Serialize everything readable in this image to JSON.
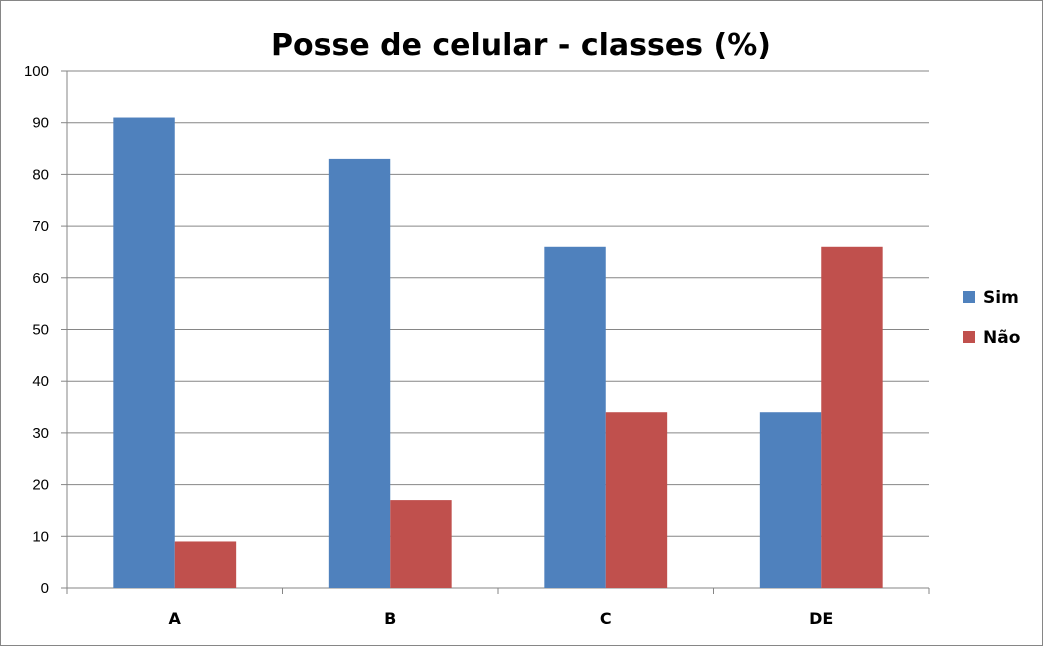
{
  "chart_data": {
    "type": "bar",
    "title": "Posse de celular - classes (%)",
    "xlabel": "",
    "ylabel": "",
    "categories": [
      "A",
      "B",
      "C",
      "DE"
    ],
    "series": [
      {
        "name": "Sim",
        "values": [
          91,
          83,
          66,
          34
        ],
        "color": "#4F81BD"
      },
      {
        "name": "Não",
        "values": [
          9,
          17,
          34,
          66
        ],
        "color": "#C0504D"
      }
    ],
    "ylim": [
      0,
      100
    ],
    "yticks": [
      0,
      10,
      20,
      30,
      40,
      50,
      60,
      70,
      80,
      90,
      100
    ],
    "grid": true,
    "legend": "right"
  }
}
